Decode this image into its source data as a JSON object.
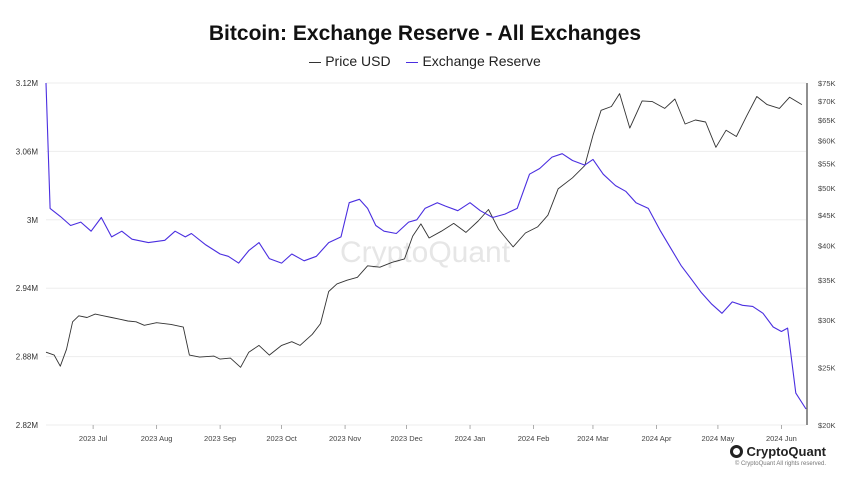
{
  "colors": {
    "price": "#333333",
    "reserve": "#4a2ee0",
    "grid": "#ededed"
  },
  "chart_data": {
    "type": "line",
    "title": "Bitcoin: Exchange Reserve - All Exchanges",
    "legend_position": "top-center",
    "grid": true,
    "x_ticks": [
      "2023 Jul",
      "2023 Aug",
      "2023 Sep",
      "2023 Oct",
      "2023 Nov",
      "2023 Dec",
      "2024 Jan",
      "2024 Feb",
      "2024 Mar",
      "2024 Apr",
      "2024 May",
      "2024 Jun"
    ],
    "x_range": [
      "2023-06-08",
      "2024-06-13"
    ],
    "y_left": {
      "ticks": [
        "3.12M",
        "3.06M",
        "3M",
        "2.94M",
        "2.88M",
        "2.82M"
      ],
      "range": [
        2820000,
        3120000
      ]
    },
    "y_right": {
      "scale": "log",
      "ticks": [
        "$75K",
        "$70K",
        "$65K",
        "$60K",
        "$55K",
        "$50K",
        "$45K",
        "$40K",
        "$35K",
        "$30K",
        "$25K",
        "$20K"
      ],
      "range": [
        20000,
        75000
      ]
    },
    "series": [
      {
        "name": "Price USD",
        "axis": "right",
        "x": [
          "2023-06-08",
          "2023-06-12",
          "2023-06-15",
          "2023-06-18",
          "2023-06-21",
          "2023-06-24",
          "2023-06-28",
          "2023-07-02",
          "2023-07-06",
          "2023-07-10",
          "2023-07-14",
          "2023-07-18",
          "2023-07-22",
          "2023-07-26",
          "2023-08-01",
          "2023-08-08",
          "2023-08-14",
          "2023-08-17",
          "2023-08-22",
          "2023-08-29",
          "2023-09-01",
          "2023-09-06",
          "2023-09-11",
          "2023-09-15",
          "2023-09-20",
          "2023-09-25",
          "2023-10-01",
          "2023-10-06",
          "2023-10-10",
          "2023-10-16",
          "2023-10-20",
          "2023-10-24",
          "2023-10-28",
          "2023-11-02",
          "2023-11-07",
          "2023-11-12",
          "2023-11-18",
          "2023-11-24",
          "2023-11-30",
          "2023-12-04",
          "2023-12-08",
          "2023-12-12",
          "2023-12-18",
          "2023-12-24",
          "2023-12-30",
          "2024-01-05",
          "2024-01-10",
          "2024-01-15",
          "2024-01-22",
          "2024-01-28",
          "2024-02-03",
          "2024-02-08",
          "2024-02-13",
          "2024-02-20",
          "2024-02-26",
          "2024-03-01",
          "2024-03-05",
          "2024-03-10",
          "2024-03-14",
          "2024-03-19",
          "2024-03-25",
          "2024-03-30",
          "2024-04-05",
          "2024-04-10",
          "2024-04-15",
          "2024-04-20",
          "2024-04-25",
          "2024-04-30",
          "2024-05-05",
          "2024-05-10",
          "2024-05-15",
          "2024-05-20",
          "2024-05-25",
          "2024-05-31",
          "2024-06-05",
          "2024-06-11"
        ],
        "y": [
          26500,
          26200,
          25100,
          26800,
          29800,
          30500,
          30300,
          30700,
          30500,
          30300,
          30100,
          29900,
          29800,
          29400,
          29700,
          29500,
          29200,
          26200,
          26000,
          26100,
          25800,
          25900,
          25000,
          26500,
          27200,
          26200,
          27200,
          27600,
          27200,
          28400,
          29600,
          33500,
          34500,
          35000,
          35400,
          37000,
          36800,
          37500,
          38000,
          41500,
          43500,
          41200,
          42300,
          43600,
          42100,
          44000,
          46000,
          42600,
          39800,
          42000,
          43000,
          45000,
          49800,
          52000,
          54500,
          61300,
          67500,
          68500,
          72000,
          63000,
          70000,
          69800,
          68000,
          70500,
          64000,
          65000,
          64500,
          58500,
          62500,
          61000,
          66000,
          71200,
          69000,
          68000,
          71000,
          69000
        ]
      },
      {
        "name": "Exchange Reserve",
        "axis": "left",
        "x": [
          "2023-06-08",
          "2023-06-10",
          "2023-06-15",
          "2023-06-20",
          "2023-06-25",
          "2023-06-30",
          "2023-07-05",
          "2023-07-10",
          "2023-07-15",
          "2023-07-20",
          "2023-07-28",
          "2023-08-05",
          "2023-08-10",
          "2023-08-15",
          "2023-08-18",
          "2023-08-25",
          "2023-09-01",
          "2023-09-05",
          "2023-09-10",
          "2023-09-15",
          "2023-09-20",
          "2023-09-25",
          "2023-10-01",
          "2023-10-06",
          "2023-10-12",
          "2023-10-18",
          "2023-10-24",
          "2023-10-30",
          "2023-11-03",
          "2023-11-08",
          "2023-11-12",
          "2023-11-16",
          "2023-11-20",
          "2023-11-26",
          "2023-12-02",
          "2023-12-06",
          "2023-12-10",
          "2023-12-16",
          "2023-12-20",
          "2023-12-26",
          "2024-01-01",
          "2024-01-06",
          "2024-01-12",
          "2024-01-18",
          "2024-01-24",
          "2024-01-30",
          "2024-02-04",
          "2024-02-10",
          "2024-02-15",
          "2024-02-20",
          "2024-02-26",
          "2024-03-01",
          "2024-03-06",
          "2024-03-12",
          "2024-03-17",
          "2024-03-22",
          "2024-03-28",
          "2024-04-03",
          "2024-04-08",
          "2024-04-13",
          "2024-04-18",
          "2024-04-23",
          "2024-04-28",
          "2024-05-03",
          "2024-05-08",
          "2024-05-13",
          "2024-05-18",
          "2024-05-23",
          "2024-05-28",
          "2024-06-01",
          "2024-06-04",
          "2024-06-08",
          "2024-06-13"
        ],
        "y": [
          3120000,
          3010000,
          3003000,
          2995000,
          2998000,
          2990000,
          3002000,
          2985000,
          2990000,
          2983000,
          2980000,
          2982000,
          2990000,
          2985000,
          2988000,
          2978000,
          2970000,
          2968000,
          2962000,
          2973000,
          2980000,
          2966000,
          2962000,
          2970000,
          2964000,
          2968000,
          2980000,
          2985000,
          3015000,
          3018000,
          3010000,
          2995000,
          2990000,
          2988000,
          2998000,
          3000000,
          3010000,
          3015000,
          3012000,
          3008000,
          3015000,
          3008000,
          3002000,
          3005000,
          3010000,
          3040000,
          3045000,
          3055000,
          3058000,
          3052000,
          3048000,
          3053000,
          3040000,
          3030000,
          3025000,
          3015000,
          3010000,
          2990000,
          2975000,
          2960000,
          2948000,
          2936000,
          2926000,
          2918000,
          2928000,
          2925000,
          2924000,
          2918000,
          2906000,
          2902000,
          2905000,
          2848000,
          2834000
        ]
      }
    ]
  },
  "branding": {
    "logo_text": "CryptoQuant",
    "copyright": "© CryptoQuant All rights reserved.",
    "watermark": "CryptoQuant"
  }
}
